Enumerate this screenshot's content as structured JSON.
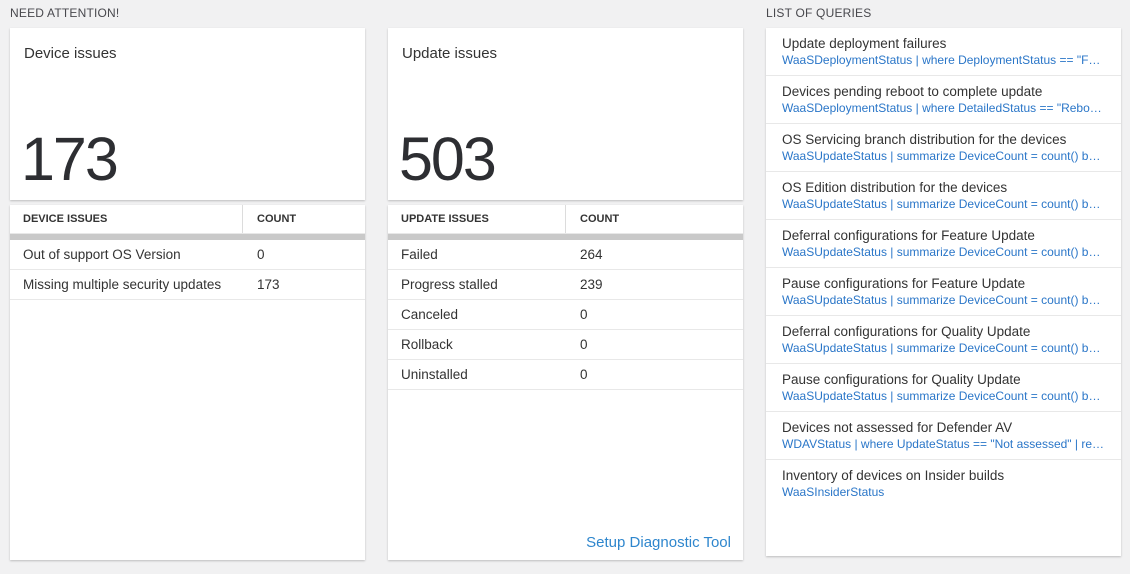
{
  "need_attention": {
    "title": "NEED ATTENTION!",
    "device_card": {
      "title": "Device issues",
      "value": "173"
    },
    "device_table": {
      "headers": [
        "DEVICE ISSUES",
        "COUNT"
      ],
      "rows": [
        {
          "label": "Out of support OS Version",
          "count": "0"
        },
        {
          "label": "Missing multiple security updates",
          "count": "173"
        }
      ]
    },
    "update_card": {
      "title": "Update issues",
      "value": "503"
    },
    "update_table": {
      "headers": [
        "UPDATE ISSUES",
        "COUNT"
      ],
      "rows": [
        {
          "label": "Failed",
          "count": "264"
        },
        {
          "label": "Progress stalled",
          "count": "239"
        },
        {
          "label": "Canceled",
          "count": "0"
        },
        {
          "label": "Rollback",
          "count": "0"
        },
        {
          "label": "Uninstalled",
          "count": "0"
        }
      ],
      "footer_link": "Setup Diagnostic Tool"
    }
  },
  "queries": {
    "title": "LIST OF QUERIES",
    "items": [
      {
        "label": "Update deployment failures",
        "query": "WaaSDeploymentStatus | where DeploymentStatus == \"Failed\" |..."
      },
      {
        "label": "Devices pending reboot to complete update",
        "query": "WaaSDeploymentStatus | where DetailedStatus == \"Reboot pend..."
      },
      {
        "label": "OS Servicing branch distribution for the devices",
        "query": "WaaSUpdateStatus | summarize DeviceCount = count() by OSSer..."
      },
      {
        "label": "OS Edition distribution for the devices",
        "query": "WaaSUpdateStatus | summarize DeviceCount = count() by OSEdit..."
      },
      {
        "label": "Deferral configurations for Feature Update",
        "query": "WaaSUpdateStatus | summarize DeviceCount = count() by Featur..."
      },
      {
        "label": "Pause configurations for Feature Update",
        "query": "WaaSUpdateStatus | summarize DeviceCount = count() by Featur..."
      },
      {
        "label": "Deferral configurations for Quality Update",
        "query": "WaaSUpdateStatus | summarize DeviceCount = count() by Qualit..."
      },
      {
        "label": "Pause configurations for Quality Update",
        "query": "WaaSUpdateStatus | summarize DeviceCount = count() by Qualit..."
      },
      {
        "label": "Devices not assessed for Defender AV",
        "query": "WDAVStatus | where UpdateStatus == \"Not assessed\" | render ta..."
      },
      {
        "label": "Inventory of devices on Insider builds",
        "query": "WaaSInsiderStatus"
      }
    ]
  },
  "colors": {
    "background": "#f1f1f2",
    "card": "#ffffff",
    "text": "#333333",
    "section_title": "#48484d",
    "query_blue": "#2a76c8",
    "link_blue": "#2e86cd",
    "scrollbar": "#c9c9c9",
    "divider": "#e8e8e8"
  }
}
